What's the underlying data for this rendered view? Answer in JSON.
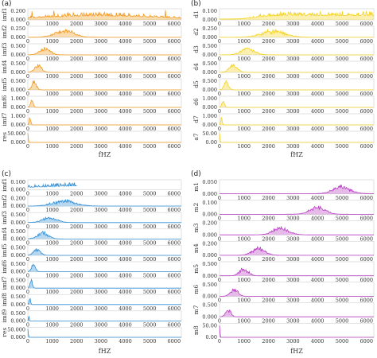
{
  "figure": {
    "panels": [
      {
        "id": "a",
        "label": "(a)"
      },
      {
        "id": "b",
        "label": "(b)"
      },
      {
        "id": "c",
        "label": "(c)"
      },
      {
        "id": "d",
        "label": "(d)"
      }
    ]
  },
  "chart_data": [
    {
      "panel": "(a)",
      "type": "area",
      "color": "#f29a1f",
      "xlabel": "fHZ",
      "xlim": [
        0,
        6300
      ],
      "xticks": [
        0,
        1000,
        2000,
        3000,
        4000,
        5000,
        6000
      ],
      "rows": [
        {
          "ylabel": "imf1",
          "yticks": [
            "0.200",
            "0.000"
          ],
          "ymax": 0.25,
          "shape": "broad",
          "center": 3000,
          "width": 3200,
          "peak": 0.08,
          "noise": 0.09,
          "floor": 0.01,
          "spike": 0.2
        },
        {
          "ylabel": "imf2",
          "yticks": [
            "0.250",
            "0.000"
          ],
          "ymax": 0.3,
          "shape": "peak",
          "center": 1500,
          "width": 550,
          "peak": 0.18,
          "noise": 0.08,
          "floor": 0.003
        },
        {
          "ylabel": "imf3",
          "yticks": [
            "0.500",
            "0.000"
          ],
          "ymax": 0.6,
          "shape": "peak",
          "center": 700,
          "width": 300,
          "peak": 0.35,
          "noise": 0.12,
          "floor": 0.002
        },
        {
          "ylabel": "imf4",
          "yticks": [
            "0.500",
            "0.000"
          ],
          "ymax": 0.6,
          "shape": "peak",
          "center": 420,
          "width": 200,
          "peak": 0.45,
          "noise": 0.08,
          "floor": 0.001
        },
        {
          "ylabel": "imf5",
          "yticks": [
            "0.500",
            "0.000"
          ],
          "ymax": 0.6,
          "shape": "peak",
          "center": 260,
          "width": 130,
          "peak": 0.5,
          "noise": 0.06,
          "floor": 0.001
        },
        {
          "ylabel": "imf6",
          "yticks": [
            "1.000",
            "0.000"
          ],
          "ymax": 1.2,
          "shape": "peak",
          "center": 160,
          "width": 80,
          "peak": 0.9,
          "noise": 0.05,
          "floor": 0
        },
        {
          "ylabel": "imf7",
          "yticks": [
            "1.000",
            "0.000"
          ],
          "ymax": 1.2,
          "shape": "peak",
          "center": 90,
          "width": 45,
          "peak": 1.0,
          "noise": 0.03,
          "floor": 0
        },
        {
          "ylabel": "res",
          "yticks": [
            "50.000",
            "0.000"
          ],
          "ymax": 60,
          "shape": "spike",
          "center": 0,
          "width": 40,
          "peak": 50,
          "noise": 0,
          "floor": 0
        }
      ]
    },
    {
      "panel": "(b)",
      "type": "area",
      "color": "#f5d31f",
      "xlabel": "fHZ",
      "xlim": [
        0,
        6300
      ],
      "xticks": [
        0,
        1000,
        2000,
        3000,
        4000,
        5000,
        6000
      ],
      "rows": [
        {
          "ylabel": "d1",
          "yticks": [
            "0.100",
            "0.000"
          ],
          "ymax": 0.13,
          "shape": "step",
          "center": 3000,
          "width": 3000,
          "peak": 0.04,
          "noise": 0.05,
          "floor": 0.01
        },
        {
          "ylabel": "d2",
          "yticks": [
            "0.250",
            "0.000"
          ],
          "ymax": 0.3,
          "shape": "peak",
          "center": 2200,
          "width": 700,
          "peak": 0.16,
          "noise": 0.08,
          "floor": 0.002
        },
        {
          "ylabel": "d3",
          "yticks": [
            "0.500",
            "0.000"
          ],
          "ymax": 0.6,
          "shape": "peak",
          "center": 1150,
          "width": 380,
          "peak": 0.36,
          "noise": 0.1,
          "floor": 0.002
        },
        {
          "ylabel": "d4",
          "yticks": [
            "0.500",
            "0.000"
          ],
          "ymax": 0.6,
          "shape": "peak",
          "center": 560,
          "width": 230,
          "peak": 0.48,
          "noise": 0.07,
          "floor": 0.001
        },
        {
          "ylabel": "d5",
          "yticks": [
            "0.500",
            "0.000"
          ],
          "ymax": 0.6,
          "shape": "peak",
          "center": 280,
          "width": 130,
          "peak": 0.5,
          "noise": 0.06,
          "floor": 0.001
        },
        {
          "ylabel": "d6",
          "yticks": [
            "1.000",
            "0.000"
          ],
          "ymax": 1.2,
          "shape": "peak",
          "center": 150,
          "width": 70,
          "peak": 0.8,
          "noise": 0.04,
          "floor": 0
        },
        {
          "ylabel": "d7",
          "yticks": [
            "1.000",
            "0.000"
          ],
          "ymax": 1.2,
          "shape": "peak",
          "center": 80,
          "width": 40,
          "peak": 1.0,
          "noise": 0.03,
          "floor": 0
        },
        {
          "ylabel": "a7",
          "yticks": [
            "50.00",
            "0.00"
          ],
          "ymax": 60,
          "shape": "spike",
          "center": 0,
          "width": 40,
          "peak": 50,
          "noise": 0,
          "floor": 0
        }
      ]
    },
    {
      "panel": "(c)",
      "type": "area",
      "color": "#2f8fd8",
      "xlabel": "fHZ",
      "xlim": [
        0,
        6300
      ],
      "xticks": [
        0,
        1000,
        2000,
        3000,
        4000,
        5000,
        6000
      ],
      "rows": [
        {
          "ylabel": "imf1",
          "yticks": [
            "0.100",
            "0.000"
          ],
          "ymax": 0.13,
          "shape": "broad",
          "center": 2500,
          "width": 3200,
          "peak": 0.04,
          "noise": 0.05,
          "floor": 0.01
        },
        {
          "ylabel": "imf2",
          "yticks": [
            "0.200",
            "0.000"
          ],
          "ymax": 0.25,
          "shape": "peak",
          "center": 1500,
          "width": 650,
          "peak": 0.12,
          "noise": 0.08,
          "floor": 0.003
        },
        {
          "ylabel": "imf3",
          "yticks": [
            "0.500",
            "0.000"
          ],
          "ymax": 0.6,
          "shape": "peak",
          "center": 900,
          "width": 420,
          "peak": 0.3,
          "noise": 0.12,
          "floor": 0.002
        },
        {
          "ylabel": "imf4",
          "yticks": [
            "0.500",
            "0.000"
          ],
          "ymax": 0.6,
          "shape": "peak",
          "center": 620,
          "width": 320,
          "peak": 0.38,
          "noise": 0.1,
          "floor": 0.002
        },
        {
          "ylabel": "imf5",
          "yticks": [
            "0.500",
            "0.000"
          ],
          "ymax": 0.6,
          "shape": "peak",
          "center": 380,
          "width": 200,
          "peak": 0.42,
          "noise": 0.08,
          "floor": 0.001
        },
        {
          "ylabel": "imf6",
          "yticks": [
            "0.500",
            "0.000"
          ],
          "ymax": 0.6,
          "shape": "peak",
          "center": 230,
          "width": 120,
          "peak": 0.48,
          "noise": 0.06,
          "floor": 0.001
        },
        {
          "ylabel": "imf7",
          "yticks": [
            "0.500",
            "0.000"
          ],
          "ymax": 0.6,
          "shape": "peak",
          "center": 140,
          "width": 70,
          "peak": 0.52,
          "noise": 0.04,
          "floor": 0
        },
        {
          "ylabel": "imf8",
          "yticks": [
            "0.500",
            "0.000"
          ],
          "ymax": 0.6,
          "shape": "peak",
          "center": 80,
          "width": 40,
          "peak": 0.55,
          "noise": 0.03,
          "floor": 0
        },
        {
          "ylabel": "imf9",
          "yticks": [
            "0.500",
            "0.000"
          ],
          "ymax": 0.6,
          "shape": "peak",
          "center": 40,
          "width": 20,
          "peak": 0.5,
          "noise": 0.02,
          "floor": 0
        },
        {
          "ylabel": "res",
          "yticks": [
            "50.000",
            "0.000"
          ],
          "ymax": 60,
          "shape": "spike",
          "center": 0,
          "width": 40,
          "peak": 50,
          "noise": 0,
          "floor": 0
        }
      ]
    },
    {
      "panel": "(d)",
      "type": "area",
      "color": "#b83cc4",
      "xlabel": "fHZ",
      "xlim": [
        0,
        6300
      ],
      "xticks": [
        0,
        1000,
        2000,
        3000,
        4000,
        5000,
        6000
      ],
      "rows": [
        {
          "ylabel": "m1",
          "yticks": [
            "0.050",
            "0.000"
          ],
          "ymax": 0.06,
          "shape": "peak",
          "center": 5000,
          "width": 500,
          "peak": 0.03,
          "noise": 0.012,
          "floor": 0.001
        },
        {
          "ylabel": "m2",
          "yticks": [
            "0.100",
            "0.000"
          ],
          "ymax": 0.12,
          "shape": "peak",
          "center": 4000,
          "width": 450,
          "peak": 0.06,
          "noise": 0.02,
          "floor": 0.001
        },
        {
          "ylabel": "m3",
          "yticks": [
            "0.200",
            "0.000"
          ],
          "ymax": 0.24,
          "shape": "peak",
          "center": 2500,
          "width": 450,
          "peak": 0.12,
          "noise": 0.04,
          "floor": 0.001
        },
        {
          "ylabel": "m4",
          "yticks": [
            "0.200",
            "0.000"
          ],
          "ymax": 0.24,
          "shape": "peak",
          "center": 1600,
          "width": 380,
          "peak": 0.12,
          "noise": 0.04,
          "floor": 0.001
        },
        {
          "ylabel": "m5",
          "yticks": [
            "0.500",
            "0.000"
          ],
          "ymax": 0.6,
          "shape": "peak",
          "center": 1000,
          "width": 260,
          "peak": 0.3,
          "noise": 0.08,
          "floor": 0.001
        },
        {
          "ylabel": "m6",
          "yticks": [
            "0.500",
            "0.000"
          ],
          "ymax": 0.6,
          "shape": "peak",
          "center": 600,
          "width": 220,
          "peak": 0.32,
          "noise": 0.06,
          "floor": 0.001
        },
        {
          "ylabel": "m7",
          "yticks": [
            "0.500",
            "0.000"
          ],
          "ymax": 0.6,
          "shape": "peak",
          "center": 350,
          "width": 150,
          "peak": 0.35,
          "noise": 0.05,
          "floor": 0.001
        },
        {
          "ylabel": "m8",
          "yticks": [
            "50.00",
            "0.00"
          ],
          "ymax": 60,
          "shape": "spike",
          "center": 0,
          "width": 40,
          "peak": 50,
          "noise": 0,
          "floor": 0
        }
      ]
    }
  ]
}
